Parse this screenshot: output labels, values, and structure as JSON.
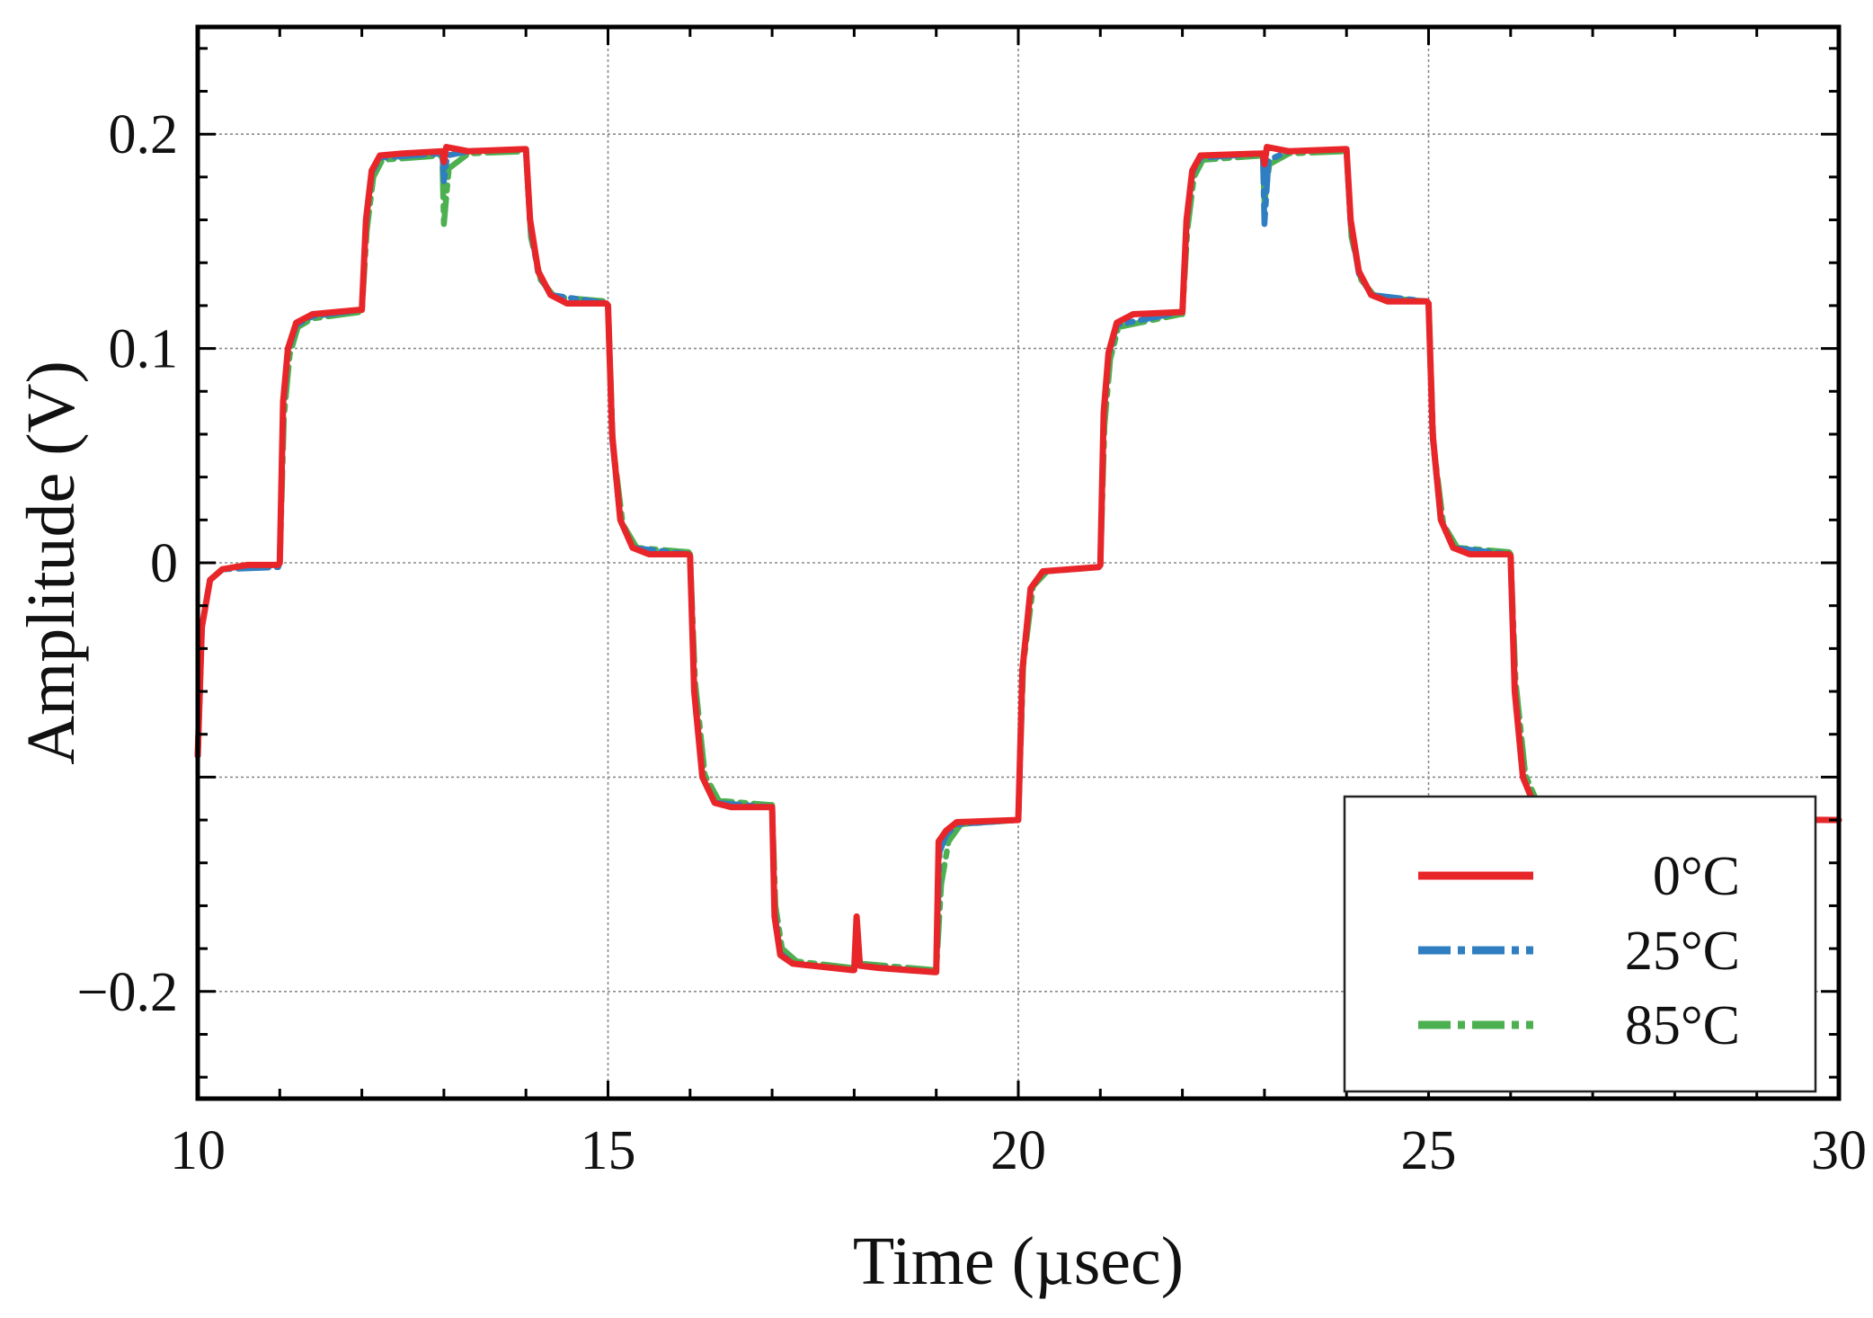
{
  "chart_data": {
    "type": "line",
    "title": "",
    "xlabel": "Time (µsec)",
    "ylabel": "Amplitude (V)",
    "xlim": [
      10,
      30
    ],
    "ylim": [
      -0.25,
      0.25
    ],
    "grid": true,
    "legend_position": "bottom-right",
    "x_ticks": [
      10,
      15,
      20,
      25,
      30
    ],
    "x_tick_labels": [
      "10",
      "15",
      "20",
      "25",
      "30"
    ],
    "y_ticks": [
      -0.2,
      -0.1,
      0,
      0.1,
      0.2
    ],
    "y_tick_labels": [
      "−0.2",
      "",
      "0",
      "0.1",
      "0.2"
    ],
    "series": [
      {
        "name": "0°C",
        "color": "#e8262a",
        "style": "solid",
        "points": [
          [
            10.0,
            -0.09
          ],
          [
            10.05,
            -0.03
          ],
          [
            10.15,
            -0.008
          ],
          [
            10.3,
            -0.003
          ],
          [
            10.6,
            -0.001
          ],
          [
            10.98,
            -0.001
          ],
          [
            11.0,
            0.0
          ],
          [
            11.04,
            0.075
          ],
          [
            11.1,
            0.1
          ],
          [
            11.2,
            0.112
          ],
          [
            11.4,
            0.116
          ],
          [
            11.96,
            0.118
          ],
          [
            12.0,
            0.118
          ],
          [
            12.05,
            0.16
          ],
          [
            12.12,
            0.183
          ],
          [
            12.22,
            0.19
          ],
          [
            12.5,
            0.191
          ],
          [
            12.98,
            0.192
          ],
          [
            13.0,
            0.187
          ],
          [
            13.03,
            0.194
          ],
          [
            13.3,
            0.192
          ],
          [
            13.98,
            0.193
          ],
          [
            14.0,
            0.193
          ],
          [
            14.05,
            0.16
          ],
          [
            14.15,
            0.136
          ],
          [
            14.3,
            0.125
          ],
          [
            14.5,
            0.121
          ],
          [
            14.98,
            0.121
          ],
          [
            15.0,
            0.12
          ],
          [
            15.05,
            0.06
          ],
          [
            15.15,
            0.02
          ],
          [
            15.3,
            0.007
          ],
          [
            15.5,
            0.004
          ],
          [
            15.98,
            0.004
          ],
          [
            16.0,
            0.003
          ],
          [
            16.05,
            -0.06
          ],
          [
            16.15,
            -0.1
          ],
          [
            16.3,
            -0.112
          ],
          [
            16.5,
            -0.114
          ],
          [
            16.98,
            -0.114
          ],
          [
            17.0,
            -0.114
          ],
          [
            17.03,
            -0.165
          ],
          [
            17.1,
            -0.183
          ],
          [
            17.25,
            -0.187
          ],
          [
            17.98,
            -0.19
          ],
          [
            18.0,
            -0.19
          ],
          [
            18.03,
            -0.165
          ],
          [
            18.07,
            -0.188
          ],
          [
            18.3,
            -0.189
          ],
          [
            18.98,
            -0.191
          ],
          [
            19.0,
            -0.191
          ],
          [
            19.03,
            -0.13
          ],
          [
            19.12,
            -0.125
          ],
          [
            19.25,
            -0.121
          ],
          [
            19.98,
            -0.12
          ],
          [
            20.0,
            -0.12
          ],
          [
            20.05,
            -0.05
          ],
          [
            20.15,
            -0.012
          ],
          [
            20.3,
            -0.004
          ],
          [
            20.98,
            -0.002
          ],
          [
            21.0,
            -0.001
          ],
          [
            21.04,
            0.07
          ],
          [
            21.1,
            0.098
          ],
          [
            21.2,
            0.112
          ],
          [
            21.4,
            0.116
          ],
          [
            21.98,
            0.117
          ],
          [
            22.0,
            0.117
          ],
          [
            22.05,
            0.16
          ],
          [
            22.12,
            0.183
          ],
          [
            22.22,
            0.19
          ],
          [
            22.98,
            0.191
          ],
          [
            23.0,
            0.186
          ],
          [
            23.03,
            0.194
          ],
          [
            23.3,
            0.192
          ],
          [
            23.98,
            0.193
          ],
          [
            24.0,
            0.193
          ],
          [
            24.05,
            0.16
          ],
          [
            24.15,
            0.136
          ],
          [
            24.3,
            0.125
          ],
          [
            24.5,
            0.122
          ],
          [
            24.98,
            0.122
          ],
          [
            25.0,
            0.121
          ],
          [
            25.05,
            0.06
          ],
          [
            25.15,
            0.02
          ],
          [
            25.3,
            0.007
          ],
          [
            25.5,
            0.004
          ],
          [
            25.98,
            0.004
          ],
          [
            26.0,
            0.003
          ],
          [
            26.05,
            -0.06
          ],
          [
            26.15,
            -0.1
          ],
          [
            26.3,
            -0.114
          ],
          [
            26.5,
            -0.119
          ],
          [
            30.0,
            -0.12
          ]
        ]
      },
      {
        "name": "25°C",
        "color": "#2f7ec1",
        "style": "dashdot",
        "points": [
          [
            10.0,
            -0.09
          ],
          [
            10.05,
            -0.03
          ],
          [
            10.15,
            -0.008
          ],
          [
            10.3,
            -0.003
          ],
          [
            10.98,
            -0.002
          ],
          [
            11.0,
            0.0
          ],
          [
            11.04,
            0.072
          ],
          [
            11.1,
            0.099
          ],
          [
            11.2,
            0.111
          ],
          [
            11.4,
            0.115
          ],
          [
            11.98,
            0.118
          ],
          [
            12.0,
            0.118
          ],
          [
            12.05,
            0.158
          ],
          [
            12.12,
            0.182
          ],
          [
            12.22,
            0.189
          ],
          [
            12.98,
            0.191
          ],
          [
            13.0,
            0.178
          ],
          [
            13.04,
            0.19
          ],
          [
            13.3,
            0.192
          ],
          [
            13.98,
            0.193
          ],
          [
            14.0,
            0.193
          ],
          [
            14.05,
            0.158
          ],
          [
            14.15,
            0.135
          ],
          [
            14.3,
            0.125
          ],
          [
            14.98,
            0.121
          ],
          [
            15.0,
            0.12
          ],
          [
            15.05,
            0.058
          ],
          [
            15.15,
            0.02
          ],
          [
            15.3,
            0.007
          ],
          [
            15.98,
            0.004
          ],
          [
            16.0,
            0.003
          ],
          [
            16.05,
            -0.058
          ],
          [
            16.15,
            -0.1
          ],
          [
            16.3,
            -0.112
          ],
          [
            16.98,
            -0.114
          ],
          [
            17.0,
            -0.114
          ],
          [
            17.03,
            -0.163
          ],
          [
            17.1,
            -0.182
          ],
          [
            17.25,
            -0.187
          ],
          [
            17.98,
            -0.19
          ],
          [
            18.0,
            -0.19
          ],
          [
            18.03,
            -0.167
          ],
          [
            18.07,
            -0.188
          ],
          [
            18.98,
            -0.191
          ],
          [
            19.0,
            -0.191
          ],
          [
            19.04,
            -0.135
          ],
          [
            19.12,
            -0.127
          ],
          [
            19.25,
            -0.122
          ],
          [
            19.98,
            -0.12
          ],
          [
            20.0,
            -0.12
          ],
          [
            20.05,
            -0.05
          ],
          [
            20.15,
            -0.012
          ],
          [
            20.3,
            -0.004
          ],
          [
            20.98,
            -0.002
          ],
          [
            21.0,
            -0.001
          ],
          [
            21.04,
            0.068
          ],
          [
            21.1,
            0.097
          ],
          [
            21.2,
            0.111
          ],
          [
            21.98,
            0.117
          ],
          [
            22.0,
            0.117
          ],
          [
            22.05,
            0.158
          ],
          [
            22.12,
            0.182
          ],
          [
            22.22,
            0.189
          ],
          [
            22.98,
            0.191
          ],
          [
            23.0,
            0.158
          ],
          [
            23.05,
            0.188
          ],
          [
            23.3,
            0.192
          ],
          [
            23.98,
            0.193
          ],
          [
            24.0,
            0.193
          ],
          [
            24.05,
            0.158
          ],
          [
            24.15,
            0.135
          ],
          [
            24.3,
            0.125
          ],
          [
            24.98,
            0.122
          ],
          [
            25.0,
            0.121
          ],
          [
            25.05,
            0.058
          ],
          [
            25.15,
            0.02
          ],
          [
            25.3,
            0.007
          ],
          [
            25.98,
            0.004
          ],
          [
            26.0,
            0.003
          ],
          [
            26.05,
            -0.058
          ],
          [
            26.15,
            -0.1
          ],
          [
            26.3,
            -0.114
          ],
          [
            26.5,
            -0.119
          ],
          [
            30.0,
            -0.12
          ]
        ]
      },
      {
        "name": "85°C",
        "color": "#4caf50",
        "style": "dashdot",
        "points": [
          [
            10.0,
            -0.09
          ],
          [
            10.05,
            -0.03
          ],
          [
            10.15,
            -0.008
          ],
          [
            10.3,
            -0.003
          ],
          [
            10.98,
            -0.001
          ],
          [
            11.0,
            0.0
          ],
          [
            11.05,
            0.068
          ],
          [
            11.12,
            0.097
          ],
          [
            11.22,
            0.11
          ],
          [
            11.4,
            0.114
          ],
          [
            11.98,
            0.117
          ],
          [
            12.0,
            0.117
          ],
          [
            12.06,
            0.155
          ],
          [
            12.14,
            0.18
          ],
          [
            12.25,
            0.188
          ],
          [
            12.98,
            0.19
          ],
          [
            13.0,
            0.158
          ],
          [
            13.06,
            0.184
          ],
          [
            13.3,
            0.191
          ],
          [
            13.98,
            0.192
          ],
          [
            14.0,
            0.192
          ],
          [
            14.06,
            0.152
          ],
          [
            14.18,
            0.132
          ],
          [
            14.35,
            0.124
          ],
          [
            14.98,
            0.122
          ],
          [
            15.0,
            0.121
          ],
          [
            15.06,
            0.055
          ],
          [
            15.18,
            0.018
          ],
          [
            15.35,
            0.007
          ],
          [
            15.98,
            0.005
          ],
          [
            16.0,
            0.004
          ],
          [
            16.06,
            -0.055
          ],
          [
            16.18,
            -0.099
          ],
          [
            16.35,
            -0.111
          ],
          [
            16.98,
            -0.113
          ],
          [
            17.0,
            -0.113
          ],
          [
            17.04,
            -0.16
          ],
          [
            17.12,
            -0.18
          ],
          [
            17.3,
            -0.186
          ],
          [
            17.98,
            -0.189
          ],
          [
            18.0,
            -0.189
          ],
          [
            18.03,
            -0.17
          ],
          [
            18.07,
            -0.187
          ],
          [
            18.98,
            -0.19
          ],
          [
            19.0,
            -0.19
          ],
          [
            19.06,
            -0.15
          ],
          [
            19.15,
            -0.13
          ],
          [
            19.3,
            -0.122
          ],
          [
            19.98,
            -0.12
          ],
          [
            20.0,
            -0.12
          ],
          [
            20.06,
            -0.048
          ],
          [
            20.18,
            -0.011
          ],
          [
            20.35,
            -0.004
          ],
          [
            20.98,
            -0.002
          ],
          [
            21.0,
            -0.001
          ],
          [
            21.05,
            0.064
          ],
          [
            21.12,
            0.095
          ],
          [
            21.22,
            0.11
          ],
          [
            21.98,
            0.116
          ],
          [
            22.0,
            0.116
          ],
          [
            22.06,
            0.155
          ],
          [
            22.14,
            0.18
          ],
          [
            22.25,
            0.188
          ],
          [
            22.98,
            0.19
          ],
          [
            23.0,
            0.168
          ],
          [
            23.06,
            0.186
          ],
          [
            23.3,
            0.191
          ],
          [
            23.98,
            0.192
          ],
          [
            24.0,
            0.192
          ],
          [
            24.06,
            0.152
          ],
          [
            24.18,
            0.132
          ],
          [
            24.35,
            0.124
          ],
          [
            24.98,
            0.122
          ],
          [
            25.0,
            0.121
          ],
          [
            25.06,
            0.055
          ],
          [
            25.18,
            0.018
          ],
          [
            25.35,
            0.007
          ],
          [
            25.98,
            0.005
          ],
          [
            26.0,
            0.004
          ],
          [
            26.06,
            -0.055
          ],
          [
            26.18,
            -0.099
          ],
          [
            26.35,
            -0.114
          ],
          [
            26.5,
            -0.119
          ],
          [
            30.0,
            -0.12
          ]
        ]
      }
    ]
  }
}
